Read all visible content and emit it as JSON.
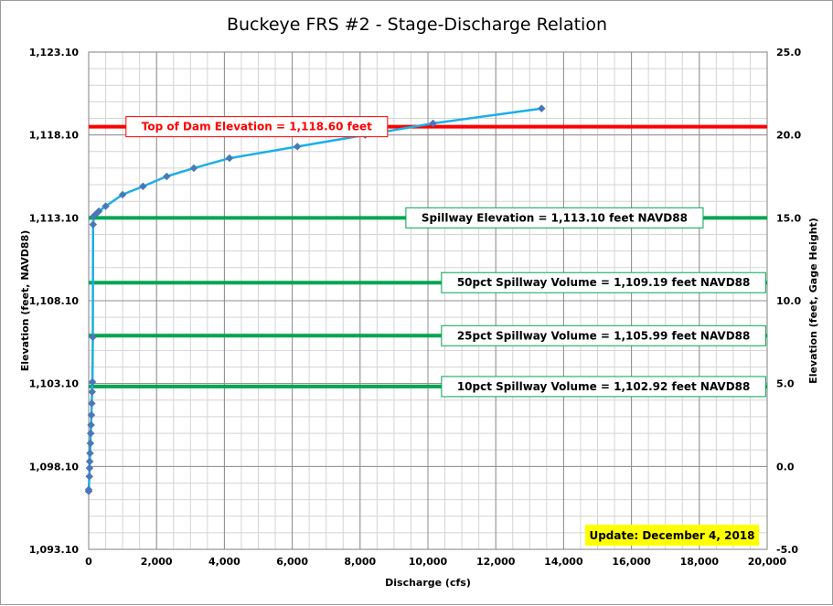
{
  "chart_data": {
    "type": "line",
    "title": "Buckeye FRS #2 - Stage-Discharge Relation",
    "xlabel": "Discharge (cfs)",
    "ylabel_left": "Elevation (feet, NAVD88)",
    "ylabel_right": "Elevation (feet, Gage Height)",
    "xlim": [
      0,
      20000
    ],
    "ylim_left": [
      1093.1,
      1123.1
    ],
    "ylim_right": [
      -5.0,
      25.0
    ],
    "x_ticks": [
      "0",
      "2,000",
      "4,000",
      "6,000",
      "8,000",
      "10,000",
      "12,000",
      "14,000",
      "16,000",
      "18,000",
      "20,000"
    ],
    "y_left_ticks": [
      "1,093.10",
      "1,098.10",
      "1,103.10",
      "1,108.10",
      "1,113.10",
      "1,118.10",
      "1,123.10"
    ],
    "y_right_ticks": [
      "-5.0",
      "0.0",
      "5.0",
      "10.0",
      "15.0",
      "20.0",
      "25.0"
    ],
    "grid": true,
    "series": [
      {
        "line_color": "#1aafe6",
        "marker_color": "#4a78b8",
        "x": [
          0,
          0,
          20,
          25,
          30,
          40,
          50,
          60,
          70,
          80,
          90,
          100,
          110,
          120,
          130,
          150,
          200,
          300,
          500,
          1000,
          1600,
          2300,
          3100,
          4150,
          6150,
          8150,
          10150,
          13350
        ],
        "y": [
          1096.6,
          1096.7,
          1097.5,
          1098.0,
          1098.4,
          1098.9,
          1099.5,
          1100.1,
          1100.6,
          1101.2,
          1101.9,
          1102.6,
          1103.2,
          1105.9,
          1112.7,
          1113.2,
          1113.3,
          1113.5,
          1113.8,
          1114.5,
          1115.0,
          1115.6,
          1116.1,
          1116.7,
          1117.4,
          1118.1,
          1118.8,
          1119.7
        ]
      }
    ],
    "reference_lines": [
      {
        "label": "Top of Dam Elevation = 1,118.60 feet",
        "y": 1118.6,
        "color": "#ff0000",
        "label_color": "#ff0000",
        "label_x": 1100
      },
      {
        "label": "Spillway Elevation = 1,113.10 feet NAVD88",
        "y": 1113.1,
        "color": "#00a651",
        "label_color": "#000000",
        "label_x": 9350
      },
      {
        "label": "50pct Spillway Volume = 1,109.19 feet NAVD88",
        "y": 1109.19,
        "color": "#00a651",
        "label_color": "#000000",
        "label_x": 10400
      },
      {
        "label": "25pct Spillway Volume = 1,105.99 feet NAVD88",
        "y": 1105.99,
        "color": "#00a651",
        "label_color": "#000000",
        "label_x": 10400
      },
      {
        "label": "10pct Spillway Volume = 1,102.92 feet NAVD88",
        "y": 1102.92,
        "color": "#00a651",
        "label_color": "#000000",
        "label_x": 10400
      }
    ],
    "update_note": {
      "text": "Update: December 4, 2018",
      "background": "#ffff00"
    }
  }
}
